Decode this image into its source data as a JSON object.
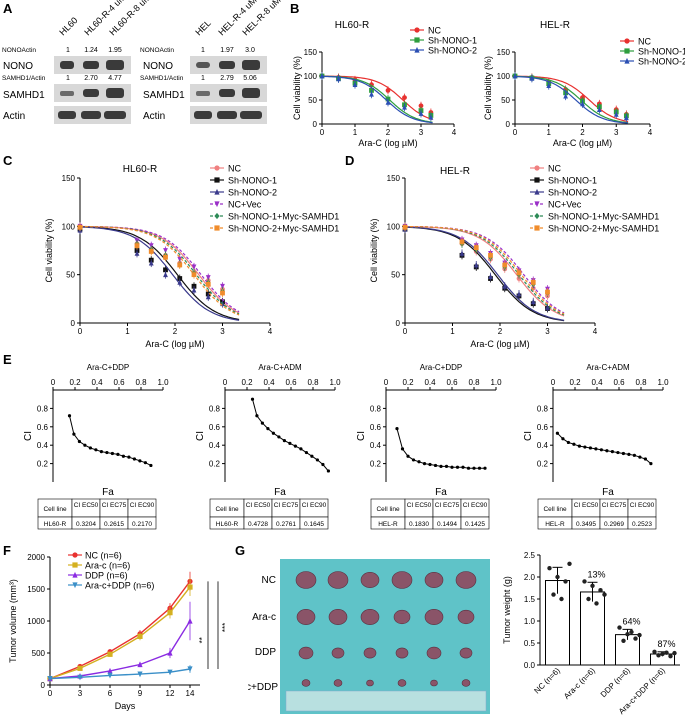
{
  "panel_labels": {
    "A": "A",
    "B": "B",
    "C": "C",
    "D": "D",
    "E": "E",
    "F": "F",
    "G": "G"
  },
  "panel_a": {
    "left": {
      "lanes": [
        "HL60",
        "HL60-R-4 uM",
        "HL60-R-8 uM"
      ],
      "nono_ratio_label": "NONOActin",
      "nono_ratios": [
        "1",
        "1.24",
        "1.95"
      ],
      "samhd1_ratio_label": "SAMHD1/Actin",
      "samhd1_ratios": [
        "1",
        "2.70",
        "4.77"
      ],
      "rows": [
        "NONO",
        "SAMHD1",
        "Actin"
      ]
    },
    "right": {
      "lanes": [
        "HEL",
        "HEL-R-4 uM",
        "HEL-R-8 uM"
      ],
      "nono_ratio_label": "NONOActin",
      "nono_ratios": [
        "1",
        "1.97",
        "3.0"
      ],
      "samhd1_ratio_label": "SAMHD1/Actin",
      "samhd1_ratios": [
        "1",
        "2.79",
        "5.06"
      ],
      "rows": [
        "NONO",
        "SAMHD1",
        "Actin"
      ]
    }
  },
  "chart_data": [
    {
      "id": "B1",
      "type": "line",
      "title": "HL60-R",
      "xlabel": "Ara-C (log µM)",
      "ylabel": "Cell viability (%)",
      "xlim": [
        0,
        4
      ],
      "ylim": [
        0,
        150
      ],
      "xticks": [
        "0",
        "1",
        "2",
        "3",
        "4"
      ],
      "yticks": [
        "0",
        "50",
        "100",
        "150"
      ],
      "series": [
        {
          "name": "NC",
          "color": "#e8312f",
          "marker": "circle",
          "ic50": 2.45,
          "x": [
            0,
            0.5,
            1,
            1.5,
            2,
            2.5,
            3,
            3.3
          ],
          "y": [
            100,
            97,
            92,
            82,
            70,
            55,
            38,
            24
          ]
        },
        {
          "name": "Sh-NONO-1",
          "color": "#2e9e3e",
          "marker": "square",
          "ic50": 2.05,
          "x": [
            0,
            0.5,
            1,
            1.5,
            2,
            2.5,
            3,
            3.3
          ],
          "y": [
            100,
            95,
            85,
            70,
            52,
            40,
            28,
            18
          ]
        },
        {
          "name": "Sh-NONO-2",
          "color": "#2b4fb3",
          "marker": "triangle",
          "ic50": 1.95,
          "x": [
            0,
            0.5,
            1,
            1.5,
            2,
            2.5,
            3,
            3.3
          ],
          "y": [
            100,
            94,
            82,
            62,
            45,
            35,
            22,
            14
          ]
        }
      ]
    },
    {
      "id": "B2",
      "type": "line",
      "title": "HEL-R",
      "xlabel": "Ara-C (log µM)",
      "ylabel": "Cell viability (%)",
      "xlim": [
        0,
        4
      ],
      "ylim": [
        0,
        150
      ],
      "xticks": [
        "0",
        "1",
        "2",
        "3",
        "4"
      ],
      "yticks": [
        "0",
        "50",
        "100",
        "150"
      ],
      "series": [
        {
          "name": "NC",
          "color": "#e8312f",
          "marker": "circle",
          "ic50": 2.2,
          "x": [
            0,
            0.5,
            1,
            1.5,
            2,
            2.5,
            3,
            3.3
          ],
          "y": [
            100,
            97,
            88,
            72,
            55,
            42,
            30,
            20
          ]
        },
        {
          "name": "Sh-NONO-1",
          "color": "#2e9e3e",
          "marker": "square",
          "ic50": 1.95,
          "x": [
            0,
            0.5,
            1,
            1.5,
            2,
            2.5,
            3,
            3.3
          ],
          "y": [
            100,
            96,
            84,
            65,
            48,
            36,
            25,
            17
          ]
        },
        {
          "name": "Sh-NONO-2",
          "color": "#2b4fb3",
          "marker": "triangle",
          "ic50": 1.8,
          "x": [
            0,
            0.5,
            1,
            1.5,
            2,
            2.5,
            3,
            3.3
          ],
          "y": [
            100,
            95,
            80,
            58,
            42,
            30,
            20,
            13
          ]
        }
      ]
    },
    {
      "id": "C",
      "type": "line",
      "title": "HL60-R",
      "xlabel": "Ara-C (log µM)",
      "ylabel": "Cell viability (%)",
      "xlim": [
        0,
        4
      ],
      "ylim": [
        0,
        150
      ],
      "xticks": [
        "0",
        "1",
        "2",
        "3",
        "4"
      ],
      "yticks": [
        "0",
        "50",
        "100",
        "150"
      ],
      "series": [
        {
          "name": "NC",
          "color": "#f08080",
          "marker": "circle",
          "ic50": 2.5,
          "dashed": false,
          "x": [
            0,
            1.2,
            1.5,
            1.8,
            2.1,
            2.4,
            2.7,
            3.0
          ],
          "y": [
            100,
            82,
            76,
            70,
            62,
            52,
            44,
            35
          ]
        },
        {
          "name": "Sh-NONO-1",
          "color": "#111111",
          "marker": "square",
          "ic50": 2.05,
          "dashed": false,
          "x": [
            0,
            1.2,
            1.5,
            1.8,
            2.1,
            2.4,
            2.7,
            3.0
          ],
          "y": [
            97,
            75,
            65,
            55,
            46,
            38,
            30,
            22
          ]
        },
        {
          "name": "Sh-NONO-2",
          "color": "#3a3a8c",
          "marker": "triangle",
          "ic50": 1.95,
          "dashed": false,
          "x": [
            0,
            1.2,
            1.5,
            1.8,
            2.1,
            2.4,
            2.7,
            3.0
          ],
          "y": [
            96,
            72,
            62,
            50,
            42,
            34,
            27,
            20
          ]
        },
        {
          "name": "NC+Vec",
          "color": "#9b30c8",
          "marker": "invtriangle",
          "ic50": 2.55,
          "dashed": true,
          "x": [
            0,
            1.2,
            1.5,
            1.8,
            2.1,
            2.4,
            2.7,
            3.0
          ],
          "y": [
            100,
            85,
            80,
            75,
            66,
            58,
            47,
            38
          ]
        },
        {
          "name": "Sh-NONO-1+Myc-SAMHD1",
          "color": "#2e8b57",
          "marker": "diamond",
          "ic50": 2.45,
          "dashed": true,
          "x": [
            0,
            1.2,
            1.5,
            1.8,
            2.1,
            2.4,
            2.7,
            3.0
          ],
          "y": [
            99,
            82,
            76,
            70,
            61,
            52,
            42,
            33
          ]
        },
        {
          "name": "Sh-NONO-2+Myc-SAMHD1",
          "color": "#f08c2c",
          "marker": "square",
          "ic50": 2.4,
          "dashed": true,
          "x": [
            0,
            1.2,
            1.5,
            1.8,
            2.1,
            2.4,
            2.7,
            3.0
          ],
          "y": [
            99,
            80,
            74,
            68,
            60,
            50,
            40,
            31
          ]
        }
      ]
    },
    {
      "id": "D",
      "type": "line",
      "title": "HEL-R",
      "xlabel": "Ara-C (log µM)",
      "ylabel": "Cell viability (%)",
      "xlim": [
        0,
        4
      ],
      "ylim": [
        0,
        150
      ],
      "xticks": [
        "0",
        "1",
        "2",
        "3",
        "4"
      ],
      "yticks": [
        "0",
        "50",
        "100",
        "150"
      ],
      "series": [
        {
          "name": "NC",
          "color": "#f08080",
          "marker": "circle",
          "ic50": 2.35,
          "dashed": false,
          "x": [
            0,
            1.2,
            1.5,
            1.8,
            2.1,
            2.4,
            2.7,
            3.0
          ],
          "y": [
            100,
            82,
            74,
            66,
            56,
            46,
            36,
            28
          ]
        },
        {
          "name": "Sh-NONO-1",
          "color": "#111111",
          "marker": "square",
          "ic50": 1.9,
          "dashed": false,
          "x": [
            0,
            1.2,
            1.5,
            1.8,
            2.1,
            2.4,
            2.7,
            3.0
          ],
          "y": [
            97,
            70,
            58,
            46,
            36,
            28,
            20,
            15
          ]
        },
        {
          "name": "Sh-NONO-2",
          "color": "#3a3a8c",
          "marker": "triangle",
          "ic50": 1.95,
          "dashed": false,
          "x": [
            0,
            1.2,
            1.5,
            1.8,
            2.1,
            2.4,
            2.7,
            3.0
          ],
          "y": [
            97,
            72,
            60,
            48,
            38,
            30,
            22,
            16
          ]
        },
        {
          "name": "NC+Vec",
          "color": "#9b30c8",
          "marker": "invtriangle",
          "ic50": 2.5,
          "dashed": true,
          "x": [
            0,
            1.2,
            1.5,
            1.8,
            2.1,
            2.4,
            2.7,
            3.0
          ],
          "y": [
            100,
            86,
            80,
            72,
            62,
            54,
            44,
            35
          ]
        },
        {
          "name": "Sh-NONO-1+Myc-SAMHD1",
          "color": "#2e8b57",
          "marker": "diamond",
          "ic50": 2.4,
          "dashed": true,
          "x": [
            0,
            1.2,
            1.5,
            1.8,
            2.1,
            2.4,
            2.7,
            3.0
          ],
          "y": [
            99,
            82,
            76,
            68,
            58,
            50,
            40,
            31
          ]
        },
        {
          "name": "Sh-NONO-2+Myc-SAMHD1",
          "color": "#f08c2c",
          "marker": "square",
          "ic50": 2.45,
          "dashed": true,
          "x": [
            0,
            1.2,
            1.5,
            1.8,
            2.1,
            2.4,
            2.7,
            3.0
          ],
          "y": [
            99,
            84,
            78,
            70,
            60,
            52,
            42,
            32
          ]
        }
      ]
    },
    {
      "id": "E1",
      "type": "line",
      "title": "Ara-C+DDP",
      "xlabel": "Fa",
      "ylabel": "CI",
      "xlim": [
        0,
        1
      ],
      "ylim": [
        0,
        1
      ],
      "xticks": [
        "0",
        "0.2",
        "0.4",
        "0.6",
        "0.8",
        "1.0"
      ],
      "yticks": [
        "0",
        "0.2",
        "0.4",
        "0.6",
        "0.8",
        "1.0"
      ],
      "x": [
        0.15,
        0.19,
        0.24,
        0.29,
        0.34,
        0.39,
        0.44,
        0.49,
        0.54,
        0.59,
        0.64,
        0.69,
        0.74,
        0.79,
        0.84,
        0.89
      ],
      "y": [
        0.72,
        0.52,
        0.44,
        0.4,
        0.37,
        0.35,
        0.33,
        0.32,
        0.31,
        0.3,
        0.28,
        0.27,
        0.25,
        0.23,
        0.21,
        0.18
      ],
      "table": {
        "headers": [
          "Cell line",
          "CI EC50",
          "CI EC75",
          "CI EC90"
        ],
        "row": [
          "HL60-R",
          "0.3204",
          "0.2615",
          "0.2170"
        ]
      }
    },
    {
      "id": "E2",
      "type": "line",
      "title": "Ara-C+ADM",
      "xlabel": "Fa",
      "ylabel": "CI",
      "xlim": [
        0,
        1
      ],
      "ylim": [
        0,
        1
      ],
      "xticks": [
        "0",
        "0.2",
        "0.4",
        "0.6",
        "0.8",
        "1.0"
      ],
      "yticks": [
        "0",
        "0.2",
        "0.4",
        "0.6",
        "0.8",
        "1.0"
      ],
      "x": [
        0.25,
        0.29,
        0.34,
        0.39,
        0.44,
        0.49,
        0.54,
        0.59,
        0.64,
        0.69,
        0.74,
        0.79,
        0.84,
        0.89,
        0.94
      ],
      "y": [
        0.9,
        0.72,
        0.64,
        0.58,
        0.53,
        0.49,
        0.45,
        0.42,
        0.39,
        0.36,
        0.32,
        0.28,
        0.24,
        0.19,
        0.12
      ],
      "table": {
        "headers": [
          "Cell line",
          "CI EC50",
          "CI EC75",
          "CI EC90"
        ],
        "row": [
          "HL60-R",
          "0.4728",
          "0.2761",
          "0.1645"
        ]
      }
    },
    {
      "id": "E3",
      "type": "line",
      "title": "Ara-C+DDP",
      "xlabel": "Fa",
      "ylabel": "CI",
      "xlim": [
        0,
        1
      ],
      "ylim": [
        0,
        1
      ],
      "xticks": [
        "0",
        "0.2",
        "0.4",
        "0.6",
        "0.8",
        "1.0"
      ],
      "yticks": [
        "0",
        "0.2",
        "0.4",
        "0.6",
        "0.8",
        "1.0"
      ],
      "x": [
        0.1,
        0.15,
        0.2,
        0.25,
        0.3,
        0.35,
        0.4,
        0.45,
        0.5,
        0.55,
        0.6,
        0.65,
        0.7,
        0.75,
        0.8,
        0.85,
        0.9
      ],
      "y": [
        0.58,
        0.36,
        0.28,
        0.24,
        0.22,
        0.2,
        0.19,
        0.18,
        0.17,
        0.17,
        0.16,
        0.16,
        0.16,
        0.15,
        0.15,
        0.15,
        0.15
      ],
      "table": {
        "headers": [
          "Cell line",
          "CI EC50",
          "CI EC75",
          "CI EC90"
        ],
        "row": [
          "HEL-R",
          "0.1830",
          "0.1494",
          "0.1425"
        ]
      }
    },
    {
      "id": "E4",
      "type": "line",
      "title": "Ara-C+ADM",
      "xlabel": "Fa",
      "ylabel": "CI",
      "xlim": [
        0,
        1
      ],
      "ylim": [
        0,
        1
      ],
      "xticks": [
        "0",
        "0.2",
        "0.4",
        "0.6",
        "0.8",
        "1.0"
      ],
      "yticks": [
        "0",
        "0.2",
        "0.4",
        "0.6",
        "0.8",
        "1.0"
      ],
      "x": [
        0.04,
        0.09,
        0.14,
        0.19,
        0.24,
        0.29,
        0.34,
        0.39,
        0.44,
        0.49,
        0.54,
        0.59,
        0.64,
        0.69,
        0.74,
        0.79,
        0.84,
        0.89
      ],
      "y": [
        0.53,
        0.47,
        0.43,
        0.41,
        0.39,
        0.38,
        0.37,
        0.36,
        0.35,
        0.34,
        0.33,
        0.32,
        0.31,
        0.3,
        0.29,
        0.27,
        0.25,
        0.2
      ],
      "table": {
        "headers": [
          "Cell line",
          "CI EC50",
          "CI EC75",
          "CI EC90"
        ],
        "row": [
          "HEL-R",
          "0.3495",
          "0.2969",
          "0.2523"
        ]
      }
    },
    {
      "id": "F",
      "type": "line",
      "xlabel": "Days",
      "ylabel": "Tumor volume (mm³)",
      "xlim": [
        0,
        15
      ],
      "ylim": [
        0,
        2000
      ],
      "xticks": [
        "0",
        "3",
        "6",
        "9",
        "12",
        "14"
      ],
      "xtick_values": [
        0,
        3,
        6,
        9,
        12,
        14
      ],
      "yticks": [
        "0",
        "500",
        "1000",
        "1500",
        "2000"
      ],
      "x": [
        0,
        3,
        6,
        9,
        12,
        14
      ],
      "series": [
        {
          "name": "NC (n=6)",
          "color": "#e8312f",
          "marker": "circle",
          "y": [
            100,
            290,
            520,
            800,
            1200,
            1620
          ],
          "err": [
            10,
            30,
            40,
            60,
            80,
            150
          ]
        },
        {
          "name": "Ara-c (n=6)",
          "color": "#d4b020",
          "marker": "square",
          "y": [
            100,
            260,
            480,
            760,
            1130,
            1530
          ],
          "err": [
            10,
            30,
            40,
            60,
            90,
            140
          ]
        },
        {
          "name": "DDP (n=6)",
          "color": "#8a2be2",
          "marker": "triangle",
          "y": [
            100,
            140,
            220,
            320,
            500,
            1000
          ],
          "err": [
            10,
            20,
            30,
            40,
            80,
            300
          ]
        },
        {
          "name": "Ara-c+DDP (n=6)",
          "color": "#3a8fc8",
          "marker": "invtriangle",
          "y": [
            100,
            120,
            150,
            170,
            200,
            250
          ],
          "err": [
            10,
            15,
            20,
            20,
            30,
            60
          ]
        }
      ],
      "annotations": [
        "**",
        "***"
      ]
    },
    {
      "id": "G",
      "type": "bar",
      "ylabel": "Tumor weight (g)",
      "ylim": [
        0,
        2.5
      ],
      "yticks": [
        "0.0",
        "0.5",
        "1.0",
        "1.5",
        "2.0",
        "2.5"
      ],
      "categories": [
        "NC (n=6)",
        "Ara-c (n=6)",
        "DDP (n=6)",
        "Ara-c+DDP (n=6)"
      ],
      "values": [
        1.92,
        1.66,
        0.69,
        0.25
      ],
      "err": [
        0.3,
        0.22,
        0.12,
        0.05
      ],
      "points": [
        [
          2.2,
          2.0,
          1.9,
          1.6,
          1.5,
          2.3
        ],
        [
          1.9,
          1.8,
          1.7,
          1.5,
          1.4,
          1.6
        ],
        [
          0.85,
          0.7,
          0.6,
          0.55,
          0.75,
          0.68
        ],
        [
          0.3,
          0.25,
          0.2,
          0.22,
          0.28,
          0.27
        ]
      ],
      "labels": [
        "",
        "13%",
        "64%",
        "87%"
      ]
    }
  ],
  "panel_g_photo": {
    "rows": [
      "NC",
      "Ara-c",
      "DDP",
      "Ara-c+DDP"
    ]
  }
}
